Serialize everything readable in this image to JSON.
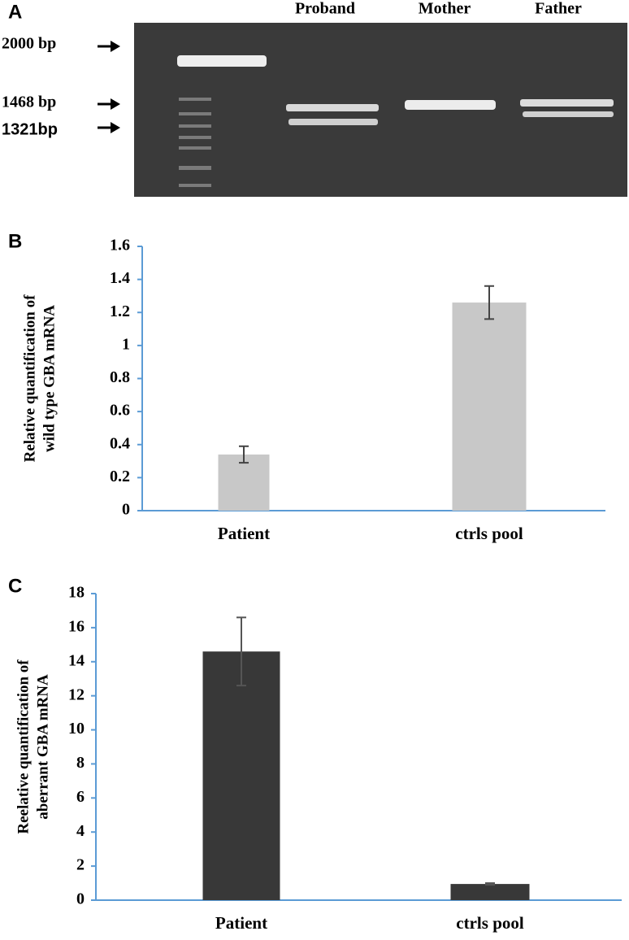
{
  "panel_a": {
    "label": "A",
    "lanes": [
      "Proband",
      "Mother",
      "Father"
    ],
    "markers": [
      "2000 bp",
      "1468 bp",
      "1321bp"
    ]
  },
  "chart_data": [
    {
      "type": "bar",
      "panel": "B",
      "ylabel": [
        "Relative quantification of",
        "wild type GBA mRNA"
      ],
      "categories": [
        "Patient",
        "ctrls pool"
      ],
      "values": [
        0.34,
        1.26
      ],
      "errors": [
        0.05,
        0.1
      ],
      "color": "#c8c8c8",
      "error_color": "#444444",
      "axis_color": "#5b9bd5",
      "ylim": [
        0,
        1.6
      ],
      "yticks": [
        0,
        0.2,
        0.4,
        0.6,
        0.8,
        1,
        1.2,
        1.4,
        1.6
      ],
      "grid": false
    },
    {
      "type": "bar",
      "panel": "C",
      "ylabel": [
        "Reelative quantification of",
        "aberrant GBA mRNA"
      ],
      "categories": [
        "Patient",
        "ctrls pool"
      ],
      "values": [
        14.6,
        0.95
      ],
      "errors": [
        2,
        0.05
      ],
      "color": "#383838",
      "error_color": "#555555",
      "axis_color": "#5b9bd5",
      "ylim": [
        0,
        18
      ],
      "yticks": [
        0,
        2,
        4,
        6,
        8,
        10,
        12,
        14,
        16,
        18
      ],
      "grid": false
    }
  ]
}
